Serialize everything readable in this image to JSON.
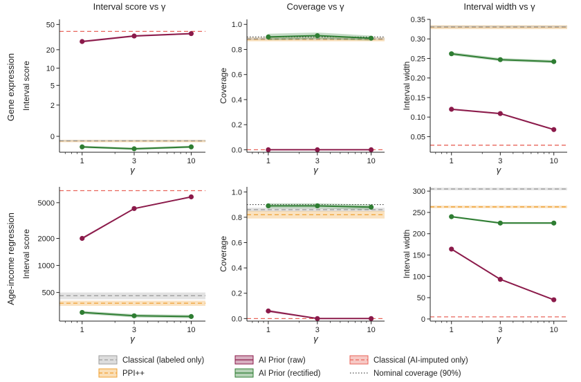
{
  "colors": {
    "classical": "#9e9e9e",
    "ppi": "#f0a030",
    "ai_raw": "#8b1a4a",
    "ai_rect": "#2e7d32",
    "ai_imputed": "#e8645a",
    "nominal": "#222222"
  },
  "legend": {
    "items": [
      {
        "key": "classical",
        "label": "Classical (labeled only)",
        "kind": "box"
      },
      {
        "key": "ai_raw",
        "label": "AI Prior (raw)",
        "kind": "box"
      },
      {
        "key": "ai_imputed",
        "label": "Classical (AI-imputed only)",
        "kind": "box"
      },
      {
        "key": "ppi",
        "label": "PPI++",
        "kind": "box"
      },
      {
        "key": "ai_rect",
        "label": "AI Prior (rectified)",
        "kind": "box"
      },
      {
        "key": "nominal",
        "label": "Nominal coverage (90%)",
        "kind": "dotted"
      }
    ]
  },
  "row_labels": [
    "Gene expression",
    "Age-income regression"
  ],
  "column_titles": [
    "Interval score vs γ",
    "Coverage vs γ",
    "Interval width vs γ"
  ],
  "chart_data": [
    {
      "type": "line",
      "row": 0,
      "col": 0,
      "title": "Interval score vs γ",
      "xlabel": "γ",
      "ylabel": "Interval score",
      "xscale": "log",
      "yscale": "symlog",
      "x": [
        1,
        3,
        10
      ],
      "xticks": [
        "1",
        "3",
        "10"
      ],
      "yticks": [
        0,
        2,
        5,
        10,
        20,
        50
      ],
      "yticklabels": [
        "0",
        "2",
        "5",
        "10",
        "20",
        "50"
      ],
      "series": [
        {
          "key": "ai_raw",
          "values": [
            27,
            33,
            36
          ],
          "band": [
            1.0,
            1.0,
            1.0
          ]
        },
        {
          "key": "ai_rect",
          "values": [
            -0.45,
            -0.55,
            -0.45
          ],
          "band": [
            0.06,
            0.06,
            0.06
          ]
        }
      ],
      "hlines": [
        {
          "key": "ai_imputed",
          "value": 39
        },
        {
          "key": "ppi",
          "value": -0.18,
          "band": 0.05
        },
        {
          "key": "classical",
          "value": -0.17,
          "band": 0.03
        }
      ]
    },
    {
      "type": "line",
      "row": 0,
      "col": 1,
      "title": "Coverage vs γ",
      "xlabel": "γ",
      "ylabel": "Coverage",
      "xscale": "log",
      "yscale": "linear",
      "ylim": [
        -0.02,
        1.04
      ],
      "x": [
        1,
        3,
        10
      ],
      "xticks": [
        "1",
        "3",
        "10"
      ],
      "yticks": [
        0,
        0.2,
        0.4,
        0.6,
        0.8,
        1.0
      ],
      "yticklabels": [
        "0.0",
        "0.2",
        "0.4",
        "0.6",
        "0.8",
        "1.0"
      ],
      "series": [
        {
          "key": "ai_rect",
          "values": [
            0.9,
            0.91,
            0.89
          ],
          "band": [
            0.025,
            0.025,
            0.02
          ]
        },
        {
          "key": "ai_raw",
          "values": [
            0.0,
            0.0,
            0.0
          ],
          "band": [
            0.003,
            0.003,
            0.003
          ]
        }
      ],
      "hlines": [
        {
          "key": "ppi",
          "value": 0.88,
          "band": 0.015
        },
        {
          "key": "classical",
          "value": 0.885,
          "band": 0.01
        },
        {
          "key": "nominal",
          "value": 0.9
        },
        {
          "key": "ai_imputed",
          "value": 0.0
        }
      ]
    },
    {
      "type": "line",
      "row": 0,
      "col": 2,
      "title": "Interval width vs γ",
      "xlabel": "γ",
      "ylabel": "Interval width",
      "xscale": "log",
      "yscale": "linear",
      "ylim": [
        0.01,
        0.35
      ],
      "x": [
        1,
        3,
        10
      ],
      "xticks": [
        "1",
        "3",
        "10"
      ],
      "yticks": [
        0.05,
        0.1,
        0.15,
        0.2,
        0.25,
        0.3,
        0.35
      ],
      "yticklabels": [
        "0.05",
        "0.10",
        "0.15",
        "0.20",
        "0.25",
        "0.30",
        "0.35"
      ],
      "series": [
        {
          "key": "ai_rect",
          "values": [
            0.262,
            0.247,
            0.242
          ],
          "band": [
            0.004,
            0.004,
            0.004
          ]
        },
        {
          "key": "ai_raw",
          "values": [
            0.12,
            0.109,
            0.068
          ],
          "band": [
            0.002,
            0.002,
            0.002
          ]
        }
      ],
      "hlines": [
        {
          "key": "ppi",
          "value": 0.33,
          "band": 0.005
        },
        {
          "key": "classical",
          "value": 0.331,
          "band": 0.003
        },
        {
          "key": "ai_imputed",
          "value": 0.028
        }
      ]
    },
    {
      "type": "line",
      "row": 1,
      "col": 0,
      "title": "",
      "xlabel": "γ",
      "ylabel": "Interval score",
      "xscale": "log",
      "yscale": "log",
      "ylim": [
        240,
        7500
      ],
      "x": [
        1,
        3,
        10
      ],
      "xticks": [
        "1",
        "3",
        "10"
      ],
      "yticks": [
        500,
        1000,
        2000,
        5000
      ],
      "yticklabels": [
        "500",
        "1000",
        "2000",
        "5000"
      ],
      "series": [
        {
          "key": "ai_raw",
          "values": [
            2000,
            4300,
            5800
          ],
          "band": [
            60,
            60,
            60
          ]
        },
        {
          "key": "ai_rect",
          "values": [
            300,
            275,
            270
          ],
          "band": [
            12,
            12,
            12
          ]
        }
      ],
      "hlines": [
        {
          "key": "ai_imputed",
          "value": 6800
        },
        {
          "key": "classical",
          "value": 460,
          "band": 40
        },
        {
          "key": "ppi",
          "value": 380,
          "band": 25
        }
      ]
    },
    {
      "type": "line",
      "row": 1,
      "col": 1,
      "title": "",
      "xlabel": "γ",
      "ylabel": "Coverage",
      "xscale": "log",
      "yscale": "linear",
      "ylim": [
        -0.02,
        1.04
      ],
      "x": [
        1,
        3,
        10
      ],
      "xticks": [
        "1",
        "3",
        "10"
      ],
      "yticks": [
        0,
        0.2,
        0.4,
        0.6,
        0.8,
        1.0
      ],
      "yticklabels": [
        "0.0",
        "0.2",
        "0.4",
        "0.6",
        "0.8",
        "1.0"
      ],
      "series": [
        {
          "key": "ai_rect",
          "values": [
            0.89,
            0.89,
            0.88
          ],
          "band": [
            0.02,
            0.02,
            0.02
          ]
        },
        {
          "key": "ai_raw",
          "values": [
            0.06,
            0.0,
            0.0
          ],
          "band": [
            0.01,
            0.003,
            0.003
          ]
        }
      ],
      "hlines": [
        {
          "key": "nominal",
          "value": 0.9
        },
        {
          "key": "classical",
          "value": 0.86,
          "band": 0.015
        },
        {
          "key": "ppi",
          "value": 0.82,
          "band": 0.03
        },
        {
          "key": "ai_imputed",
          "value": 0.0
        }
      ]
    },
    {
      "type": "line",
      "row": 1,
      "col": 2,
      "title": "",
      "xlabel": "γ",
      "ylabel": "Interval width",
      "xscale": "log",
      "yscale": "linear",
      "ylim": [
        -5,
        310
      ],
      "x": [
        1,
        3,
        10
      ],
      "xticks": [
        "1",
        "3",
        "10"
      ],
      "yticks": [
        0,
        50,
        100,
        150,
        200,
        250,
        300
      ],
      "yticklabels": [
        "0",
        "50",
        "100",
        "150",
        "200",
        "250",
        "300"
      ],
      "series": [
        {
          "key": "ai_rect",
          "values": [
            240,
            225,
            225
          ],
          "band": [
            2,
            2,
            2
          ]
        },
        {
          "key": "ai_raw",
          "values": [
            164,
            93,
            45
          ],
          "band": [
            1,
            1,
            1
          ]
        }
      ],
      "hlines": [
        {
          "key": "classical",
          "value": 305,
          "band": 3
        },
        {
          "key": "ppi",
          "value": 263,
          "band": 3
        },
        {
          "key": "ai_imputed",
          "value": 5
        }
      ]
    }
  ]
}
